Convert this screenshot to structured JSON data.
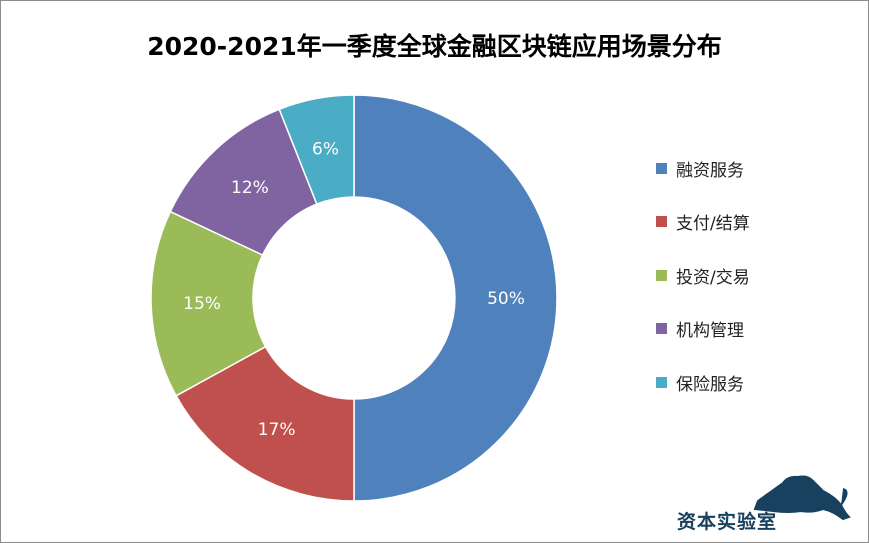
{
  "chart_data": {
    "type": "pie",
    "variant": "donut",
    "title": "2020-2021年一季度全球金融区块链应用场景分布",
    "categories": [
      "融资服务",
      "支付/结算",
      "投资/交易",
      "机构管理",
      "保险服务"
    ],
    "values": [
      50,
      17,
      15,
      12,
      6
    ],
    "data_labels": [
      "50%",
      "17%",
      "15%",
      "12%",
      "6%"
    ],
    "colors": [
      "#4F81BD",
      "#C0504D",
      "#9BBB59",
      "#8064A2",
      "#4BACC6"
    ],
    "legend_position": "right"
  },
  "watermark": {
    "text": "资本实验室"
  }
}
